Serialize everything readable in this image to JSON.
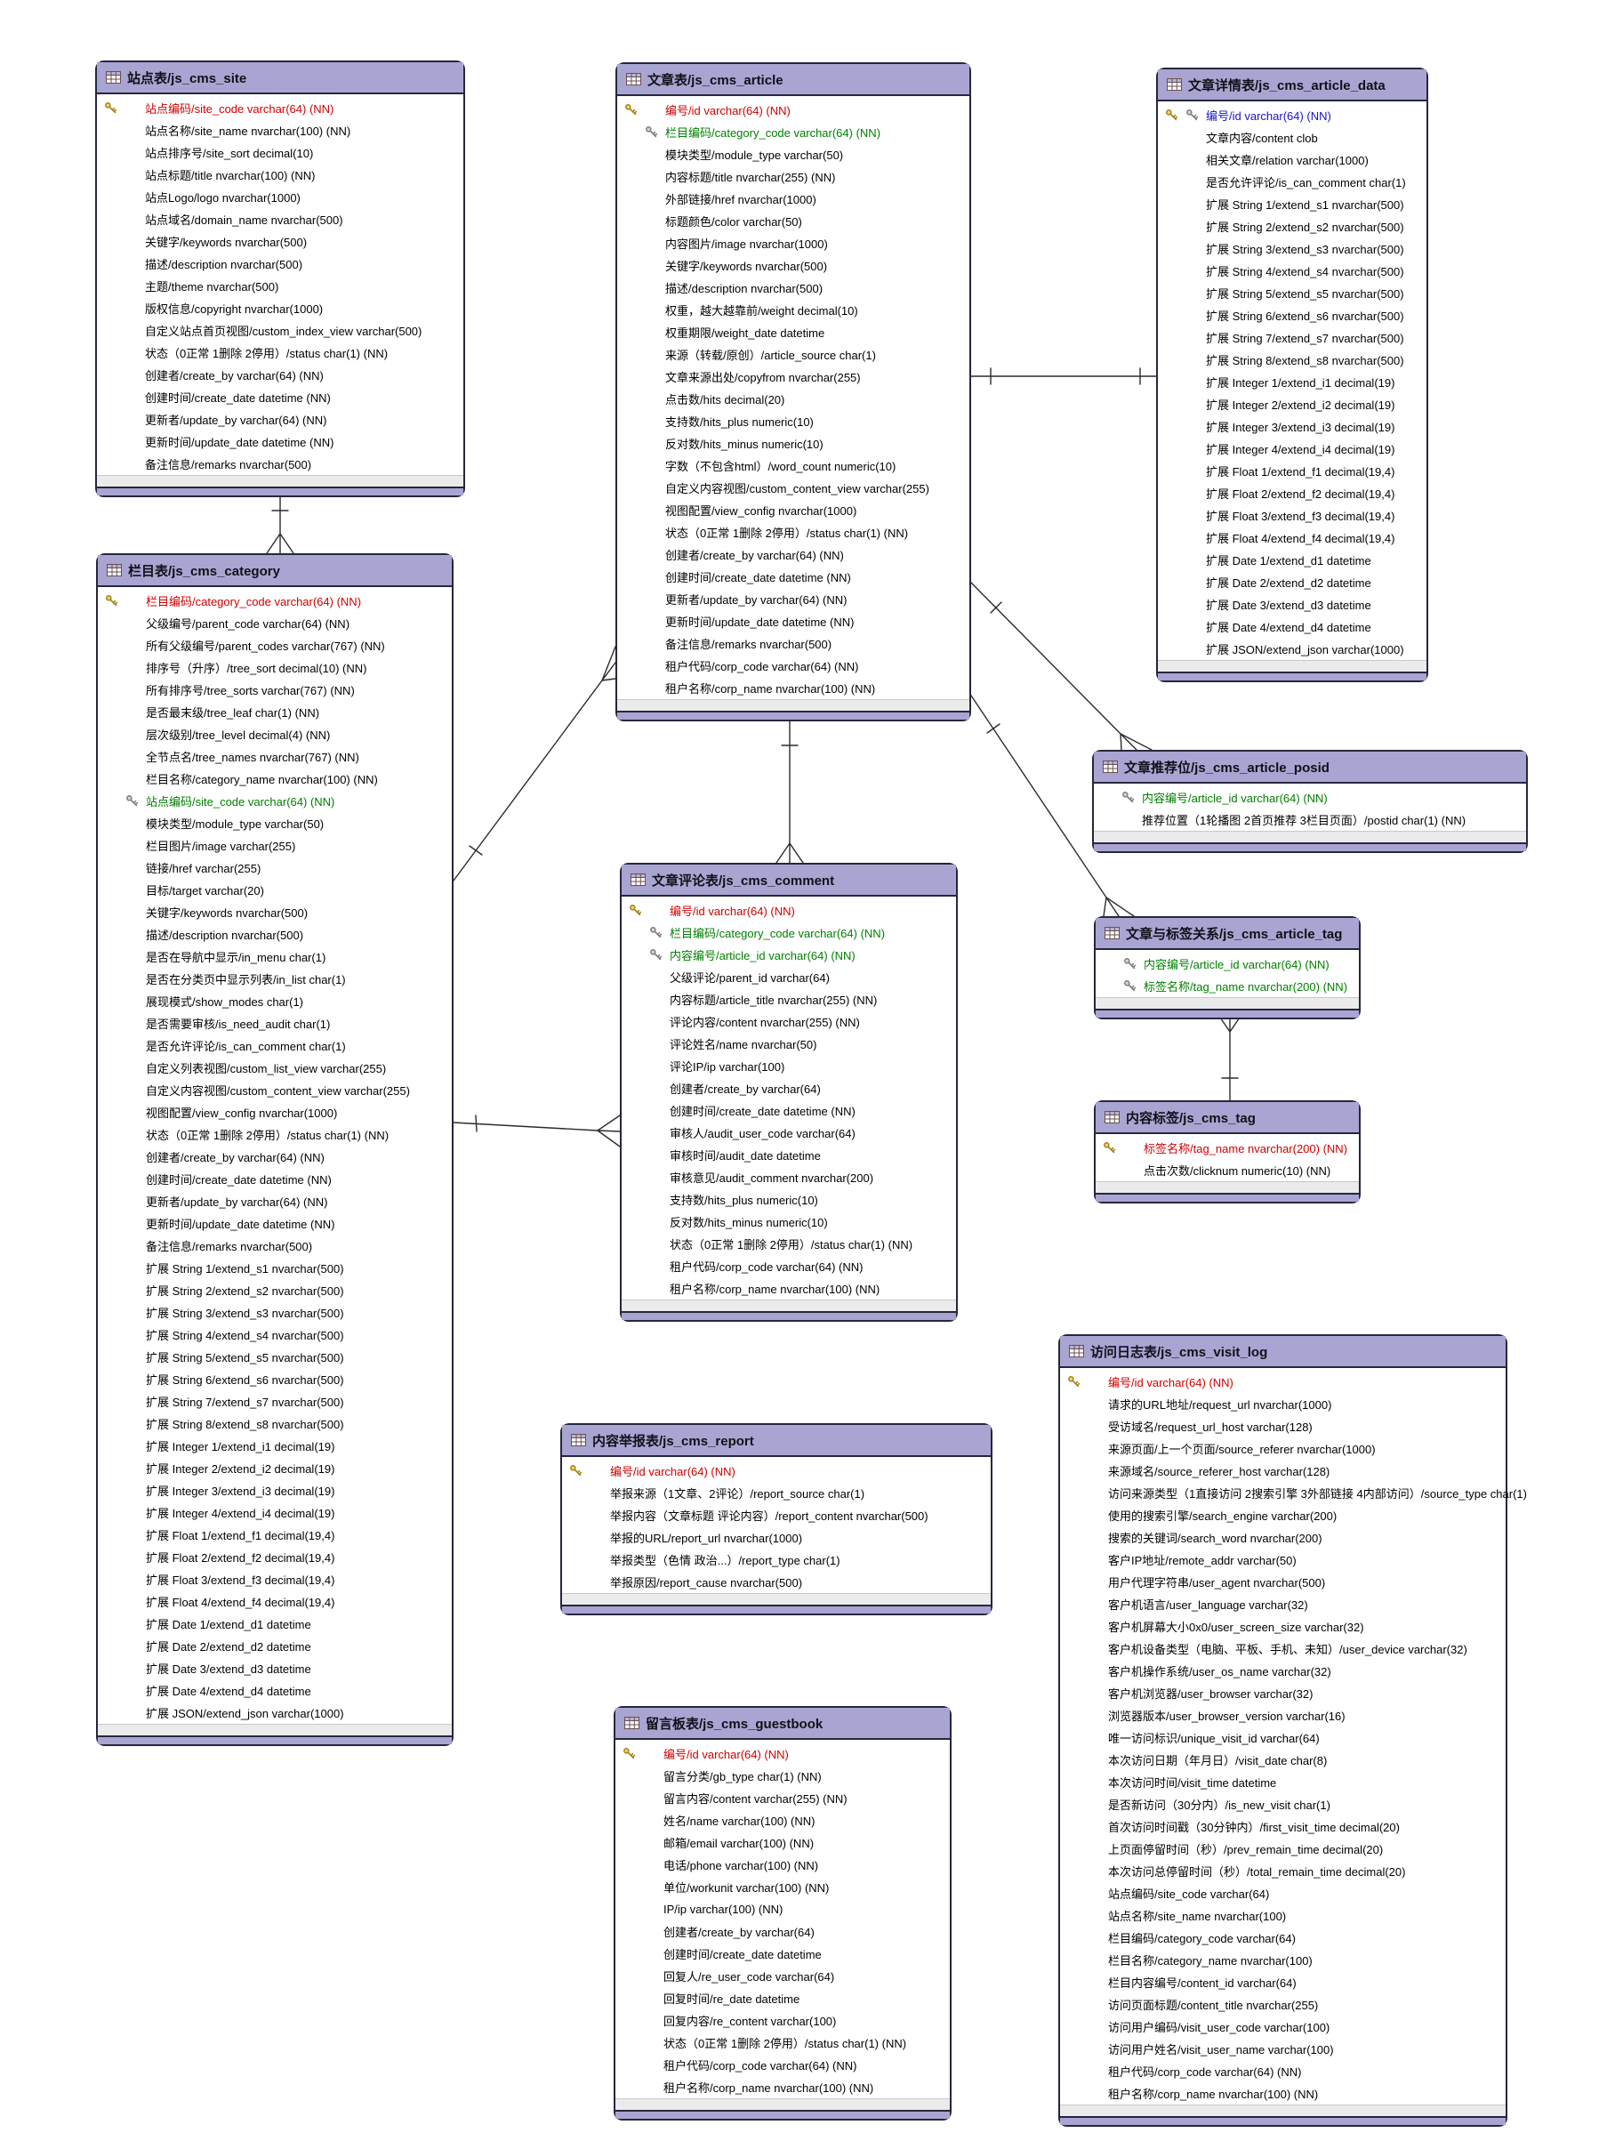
{
  "colors": {
    "header_fill": "#a9a5d2",
    "table_border": "#26263e",
    "pk_text": "#d10000",
    "fk_text": "#008000",
    "pk_fk_text": "#1414cc",
    "footer_fill": "#ebebeb",
    "line_color": "#2b2b2b"
  },
  "icons": {
    "table_header": "table-grid-icon",
    "primary_key": "gold-key-icon",
    "foreign_key": "silver-key-icon"
  },
  "tables": [
    {
      "id": "js_cms_site",
      "title": "站点表/js_cms_site",
      "fields": [
        {
          "t": "站点编码/site_code varchar(64) (NN)",
          "k": "pk"
        },
        {
          "t": "站点名称/site_name nvarchar(100) (NN)"
        },
        {
          "t": "站点排序号/site_sort decimal(10)"
        },
        {
          "t": "站点标题/title nvarchar(100) (NN)"
        },
        {
          "t": "站点Logo/logo nvarchar(1000)"
        },
        {
          "t": "站点域名/domain_name nvarchar(500)"
        },
        {
          "t": "关键字/keywords nvarchar(500)"
        },
        {
          "t": "描述/description nvarchar(500)"
        },
        {
          "t": "主题/theme nvarchar(500)"
        },
        {
          "t": "版权信息/copyright nvarchar(1000)"
        },
        {
          "t": "自定义站点首页视图/custom_index_view varchar(500)"
        },
        {
          "t": "状态（0正常 1删除 2停用）/status char(1) (NN)"
        },
        {
          "t": "创建者/create_by varchar(64) (NN)"
        },
        {
          "t": "创建时间/create_date datetime (NN)"
        },
        {
          "t": "更新者/update_by varchar(64) (NN)"
        },
        {
          "t": "更新时间/update_date datetime (NN)"
        },
        {
          "t": "备注信息/remarks nvarchar(500)"
        }
      ]
    },
    {
      "id": "js_cms_article",
      "title": "文章表/js_cms_article",
      "fields": [
        {
          "t": "编号/id varchar(64) (NN)",
          "k": "pk"
        },
        {
          "t": "栏目编码/category_code varchar(64) (NN)",
          "k": "fk"
        },
        {
          "t": "模块类型/module_type varchar(50)"
        },
        {
          "t": "内容标题/title nvarchar(255) (NN)"
        },
        {
          "t": "外部链接/href nvarchar(1000)"
        },
        {
          "t": "标题颜色/color varchar(50)"
        },
        {
          "t": "内容图片/image nvarchar(1000)"
        },
        {
          "t": "关键字/keywords nvarchar(500)"
        },
        {
          "t": "描述/description nvarchar(500)"
        },
        {
          "t": "权重，越大越靠前/weight decimal(10)"
        },
        {
          "t": "权重期限/weight_date datetime"
        },
        {
          "t": "来源（转载/原创）/article_source char(1)"
        },
        {
          "t": "文章来源出处/copyfrom nvarchar(255)"
        },
        {
          "t": "点击数/hits decimal(20)"
        },
        {
          "t": "支持数/hits_plus numeric(10)"
        },
        {
          "t": "反对数/hits_minus numeric(10)"
        },
        {
          "t": "字数（不包含html）/word_count numeric(10)"
        },
        {
          "t": "自定义内容视图/custom_content_view varchar(255)"
        },
        {
          "t": "视图配置/view_config nvarchar(1000)"
        },
        {
          "t": "状态（0正常 1删除 2停用）/status char(1) (NN)"
        },
        {
          "t": "创建者/create_by varchar(64) (NN)"
        },
        {
          "t": "创建时间/create_date datetime (NN)"
        },
        {
          "t": "更新者/update_by varchar(64) (NN)"
        },
        {
          "t": "更新时间/update_date datetime (NN)"
        },
        {
          "t": "备注信息/remarks nvarchar(500)"
        },
        {
          "t": "租户代码/corp_code varchar(64) (NN)"
        },
        {
          "t": "租户名称/corp_name nvarchar(100) (NN)"
        }
      ]
    },
    {
      "id": "js_cms_article_data",
      "title": "文章详情表/js_cms_article_data",
      "fields": [
        {
          "t": "编号/id varchar(64) (NN)",
          "k": "pkfk"
        },
        {
          "t": "文章内容/content clob"
        },
        {
          "t": "相关文章/relation varchar(1000)"
        },
        {
          "t": "是否允许评论/is_can_comment char(1)"
        },
        {
          "t": "扩展 String 1/extend_s1 nvarchar(500)"
        },
        {
          "t": "扩展 String 2/extend_s2 nvarchar(500)"
        },
        {
          "t": "扩展 String 3/extend_s3 nvarchar(500)"
        },
        {
          "t": "扩展 String 4/extend_s4 nvarchar(500)"
        },
        {
          "t": "扩展 String 5/extend_s5 nvarchar(500)"
        },
        {
          "t": "扩展 String 6/extend_s6 nvarchar(500)"
        },
        {
          "t": "扩展 String 7/extend_s7 nvarchar(500)"
        },
        {
          "t": "扩展 String 8/extend_s8 nvarchar(500)"
        },
        {
          "t": "扩展 Integer 1/extend_i1 decimal(19)"
        },
        {
          "t": "扩展 Integer 2/extend_i2 decimal(19)"
        },
        {
          "t": "扩展 Integer 3/extend_i3 decimal(19)"
        },
        {
          "t": "扩展 Integer 4/extend_i4 decimal(19)"
        },
        {
          "t": "扩展 Float 1/extend_f1 decimal(19,4)"
        },
        {
          "t": "扩展 Float 2/extend_f2 decimal(19,4)"
        },
        {
          "t": "扩展 Float 3/extend_f3 decimal(19,4)"
        },
        {
          "t": "扩展 Float 4/extend_f4 decimal(19,4)"
        },
        {
          "t": "扩展 Date 1/extend_d1 datetime"
        },
        {
          "t": "扩展 Date 2/extend_d2 datetime"
        },
        {
          "t": "扩展 Date 3/extend_d3 datetime"
        },
        {
          "t": "扩展 Date 4/extend_d4 datetime"
        },
        {
          "t": "扩展 JSON/extend_json varchar(1000)"
        }
      ]
    },
    {
      "id": "js_cms_category",
      "title": "栏目表/js_cms_category",
      "fields": [
        {
          "t": "栏目编码/category_code varchar(64) (NN)",
          "k": "pk"
        },
        {
          "t": "父级编号/parent_code varchar(64) (NN)"
        },
        {
          "t": "所有父级编号/parent_codes varchar(767) (NN)"
        },
        {
          "t": "排序号（升序）/tree_sort decimal(10) (NN)"
        },
        {
          "t": "所有排序号/tree_sorts varchar(767) (NN)"
        },
        {
          "t": "是否最末级/tree_leaf char(1) (NN)"
        },
        {
          "t": "层次级别/tree_level decimal(4) (NN)"
        },
        {
          "t": "全节点名/tree_names nvarchar(767) (NN)"
        },
        {
          "t": "栏目名称/category_name nvarchar(100) (NN)"
        },
        {
          "t": "站点编码/site_code varchar(64) (NN)",
          "k": "fk"
        },
        {
          "t": "模块类型/module_type varchar(50)"
        },
        {
          "t": "栏目图片/image varchar(255)"
        },
        {
          "t": "链接/href varchar(255)"
        },
        {
          "t": "目标/target varchar(20)"
        },
        {
          "t": "关键字/keywords nvarchar(500)"
        },
        {
          "t": "描述/description nvarchar(500)"
        },
        {
          "t": "是否在导航中显示/in_menu char(1)"
        },
        {
          "t": "是否在分类页中显示列表/in_list char(1)"
        },
        {
          "t": "展现模式/show_modes char(1)"
        },
        {
          "t": "是否需要审核/is_need_audit char(1)"
        },
        {
          "t": "是否允许评论/is_can_comment char(1)"
        },
        {
          "t": "自定义列表视图/custom_list_view varchar(255)"
        },
        {
          "t": "自定义内容视图/custom_content_view varchar(255)"
        },
        {
          "t": "视图配置/view_config nvarchar(1000)"
        },
        {
          "t": "状态（0正常 1删除 2停用）/status char(1) (NN)"
        },
        {
          "t": "创建者/create_by varchar(64) (NN)"
        },
        {
          "t": "创建时间/create_date datetime (NN)"
        },
        {
          "t": "更新者/update_by varchar(64) (NN)"
        },
        {
          "t": "更新时间/update_date datetime (NN)"
        },
        {
          "t": "备注信息/remarks nvarchar(500)"
        },
        {
          "t": "扩展 String 1/extend_s1 nvarchar(500)"
        },
        {
          "t": "扩展 String 2/extend_s2 nvarchar(500)"
        },
        {
          "t": "扩展 String 3/extend_s3 nvarchar(500)"
        },
        {
          "t": "扩展 String 4/extend_s4 nvarchar(500)"
        },
        {
          "t": "扩展 String 5/extend_s5 nvarchar(500)"
        },
        {
          "t": "扩展 String 6/extend_s6 nvarchar(500)"
        },
        {
          "t": "扩展 String 7/extend_s7 nvarchar(500)"
        },
        {
          "t": "扩展 String 8/extend_s8 nvarchar(500)"
        },
        {
          "t": "扩展 Integer 1/extend_i1 decimal(19)"
        },
        {
          "t": "扩展 Integer 2/extend_i2 decimal(19)"
        },
        {
          "t": "扩展 Integer 3/extend_i3 decimal(19)"
        },
        {
          "t": "扩展 Integer 4/extend_i4 decimal(19)"
        },
        {
          "t": "扩展 Float 1/extend_f1 decimal(19,4)"
        },
        {
          "t": "扩展 Float 2/extend_f2 decimal(19,4)"
        },
        {
          "t": "扩展 Float 3/extend_f3 decimal(19,4)"
        },
        {
          "t": "扩展 Float 4/extend_f4 decimal(19,4)"
        },
        {
          "t": "扩展 Date 1/extend_d1 datetime"
        },
        {
          "t": "扩展 Date 2/extend_d2 datetime"
        },
        {
          "t": "扩展 Date 3/extend_d3 datetime"
        },
        {
          "t": "扩展 Date 4/extend_d4 datetime"
        },
        {
          "t": "扩展 JSON/extend_json varchar(1000)"
        }
      ]
    },
    {
      "id": "js_cms_comment",
      "title": "文章评论表/js_cms_comment",
      "fields": [
        {
          "t": "编号/id varchar(64) (NN)",
          "k": "pk"
        },
        {
          "t": "栏目编码/category_code varchar(64) (NN)",
          "k": "fk"
        },
        {
          "t": "内容编号/article_id varchar(64) (NN)",
          "k": "fk"
        },
        {
          "t": "父级评论/parent_id varchar(64)"
        },
        {
          "t": "内容标题/article_title nvarchar(255) (NN)"
        },
        {
          "t": "评论内容/content nvarchar(255) (NN)"
        },
        {
          "t": "评论姓名/name nvarchar(50)"
        },
        {
          "t": "评论IP/ip varchar(100)"
        },
        {
          "t": "创建者/create_by varchar(64)"
        },
        {
          "t": "创建时间/create_date datetime (NN)"
        },
        {
          "t": "审核人/audit_user_code varchar(64)"
        },
        {
          "t": "审核时间/audit_date datetime"
        },
        {
          "t": "审核意见/audit_comment nvarchar(200)"
        },
        {
          "t": "支持数/hits_plus numeric(10)"
        },
        {
          "t": "反对数/hits_minus numeric(10)"
        },
        {
          "t": "状态（0正常 1删除 2停用）/status char(1) (NN)"
        },
        {
          "t": "租户代码/corp_code varchar(64) (NN)"
        },
        {
          "t": "租户名称/corp_name nvarchar(100) (NN)"
        }
      ]
    },
    {
      "id": "js_cms_article_posid",
      "title": "文章推荐位/js_cms_article_posid",
      "fields": [
        {
          "t": "内容编号/article_id varchar(64) (NN)",
          "k": "fk"
        },
        {
          "t": "推荐位置（1轮播图 2首页推荐 3栏目页面）/postid char(1) (NN)"
        }
      ]
    },
    {
      "id": "js_cms_article_tag",
      "title": "文章与标签关系/js_cms_article_tag",
      "fields": [
        {
          "t": "内容编号/article_id varchar(64) (NN)",
          "k": "fk"
        },
        {
          "t": "标签名称/tag_name nvarchar(200) (NN)",
          "k": "fk"
        }
      ]
    },
    {
      "id": "js_cms_tag",
      "title": "内容标签/js_cms_tag",
      "fields": [
        {
          "t": "标签名称/tag_name nvarchar(200) (NN)",
          "k": "pk"
        },
        {
          "t": "点击次数/clicknum numeric(10) (NN)"
        }
      ]
    },
    {
      "id": "js_cms_report",
      "title": "内容举报表/js_cms_report",
      "fields": [
        {
          "t": "编号/id varchar(64) (NN)",
          "k": "pk"
        },
        {
          "t": "举报来源（1文章、2评论）/report_source char(1)"
        },
        {
          "t": "举报内容（文章标题 评论内容）/report_content nvarchar(500)"
        },
        {
          "t": "举报的URL/report_url nvarchar(1000)"
        },
        {
          "t": "举报类型（色情 政治...）/report_type char(1)"
        },
        {
          "t": "举报原因/report_cause nvarchar(500)"
        }
      ]
    },
    {
      "id": "js_cms_guestbook",
      "title": "留言板表/js_cms_guestbook",
      "fields": [
        {
          "t": "编号/id varchar(64) (NN)",
          "k": "pk"
        },
        {
          "t": "留言分类/gb_type char(1) (NN)"
        },
        {
          "t": "留言内容/content varchar(255) (NN)"
        },
        {
          "t": "姓名/name varchar(100) (NN)"
        },
        {
          "t": "邮箱/email varchar(100) (NN)"
        },
        {
          "t": "电话/phone varchar(100) (NN)"
        },
        {
          "t": "单位/workunit varchar(100) (NN)"
        },
        {
          "t": "IP/ip varchar(100) (NN)"
        },
        {
          "t": "创建者/create_by varchar(64)"
        },
        {
          "t": "创建时间/create_date datetime"
        },
        {
          "t": "回复人/re_user_code varchar(64)"
        },
        {
          "t": "回复时间/re_date datetime"
        },
        {
          "t": "回复内容/re_content varchar(100)"
        },
        {
          "t": "状态（0正常 1删除 2停用）/status char(1) (NN)"
        },
        {
          "t": "租户代码/corp_code varchar(64) (NN)"
        },
        {
          "t": "租户名称/corp_name nvarchar(100) (NN)"
        }
      ]
    },
    {
      "id": "js_cms_visit_log",
      "title": "访问日志表/js_cms_visit_log",
      "fields": [
        {
          "t": "编号/id varchar(64) (NN)",
          "k": "pk"
        },
        {
          "t": "请求的URL地址/request_url nvarchar(1000)"
        },
        {
          "t": "受访域名/request_url_host varchar(128)"
        },
        {
          "t": "来源页面/上一个页面/source_referer nvarchar(1000)"
        },
        {
          "t": "来源域名/source_referer_host varchar(128)"
        },
        {
          "t": "访问来源类型（1直接访问 2搜索引擎 3外部链接 4内部访问）/source_type char(1)"
        },
        {
          "t": "使用的搜索引擎/search_engine varchar(200)"
        },
        {
          "t": "搜索的关键词/search_word nvarchar(200)"
        },
        {
          "t": "客户IP地址/remote_addr varchar(50)"
        },
        {
          "t": "用户代理字符串/user_agent nvarchar(500)"
        },
        {
          "t": "客户机语言/user_language varchar(32)"
        },
        {
          "t": "客户机屏幕大小0x0/user_screen_size varchar(32)"
        },
        {
          "t": "客户机设备类型（电脑、平板、手机、未知）/user_device varchar(32)"
        },
        {
          "t": "客户机操作系统/user_os_name varchar(32)"
        },
        {
          "t": "客户机浏览器/user_browser varchar(32)"
        },
        {
          "t": "浏览器版本/user_browser_version varchar(16)"
        },
        {
          "t": "唯一访问标识/unique_visit_id varchar(64)"
        },
        {
          "t": "本次访问日期（年月日）/visit_date char(8)"
        },
        {
          "t": "本次访问时间/visit_time datetime"
        },
        {
          "t": "是否新访问（30分内）/is_new_visit char(1)"
        },
        {
          "t": "首次访问时间戳（30分钟内）/first_visit_time decimal(20)"
        },
        {
          "t": "上页面停留时间（秒）/prev_remain_time decimal(20)"
        },
        {
          "t": "本次访问总停留时间（秒）/total_remain_time decimal(20)"
        },
        {
          "t": "站点编码/site_code varchar(64)"
        },
        {
          "t": "站点名称/site_name nvarchar(100)"
        },
        {
          "t": "栏目编码/category_code varchar(64)"
        },
        {
          "t": "栏目名称/category_name nvarchar(100)"
        },
        {
          "t": "栏目内容编号/content_id varchar(64)"
        },
        {
          "t": "访问页面标题/content_title nvarchar(255)"
        },
        {
          "t": "访问用户编码/visit_user_code varchar(100)"
        },
        {
          "t": "访问用户姓名/visit_user_name varchar(100)"
        },
        {
          "t": "租户代码/corp_code varchar(64) (NN)"
        },
        {
          "t": "租户名称/corp_name nvarchar(100) (NN)"
        }
      ]
    }
  ],
  "relationships": [
    {
      "from": "js_cms_site",
      "to": "js_cms_category",
      "type": "one-to-many"
    },
    {
      "from": "js_cms_category",
      "to": "js_cms_article",
      "type": "one-to-many"
    },
    {
      "from": "js_cms_article",
      "to": "js_cms_article_data",
      "type": "one-to-one"
    },
    {
      "from": "js_cms_article",
      "to": "js_cms_comment",
      "type": "one-to-many"
    },
    {
      "from": "js_cms_category",
      "to": "js_cms_comment",
      "type": "one-to-many"
    },
    {
      "from": "js_cms_article",
      "to": "js_cms_article_posid",
      "type": "one-to-many"
    },
    {
      "from": "js_cms_article",
      "to": "js_cms_article_tag",
      "type": "one-to-many"
    },
    {
      "from": "js_cms_tag",
      "to": "js_cms_article_tag",
      "type": "one-to-many"
    }
  ]
}
